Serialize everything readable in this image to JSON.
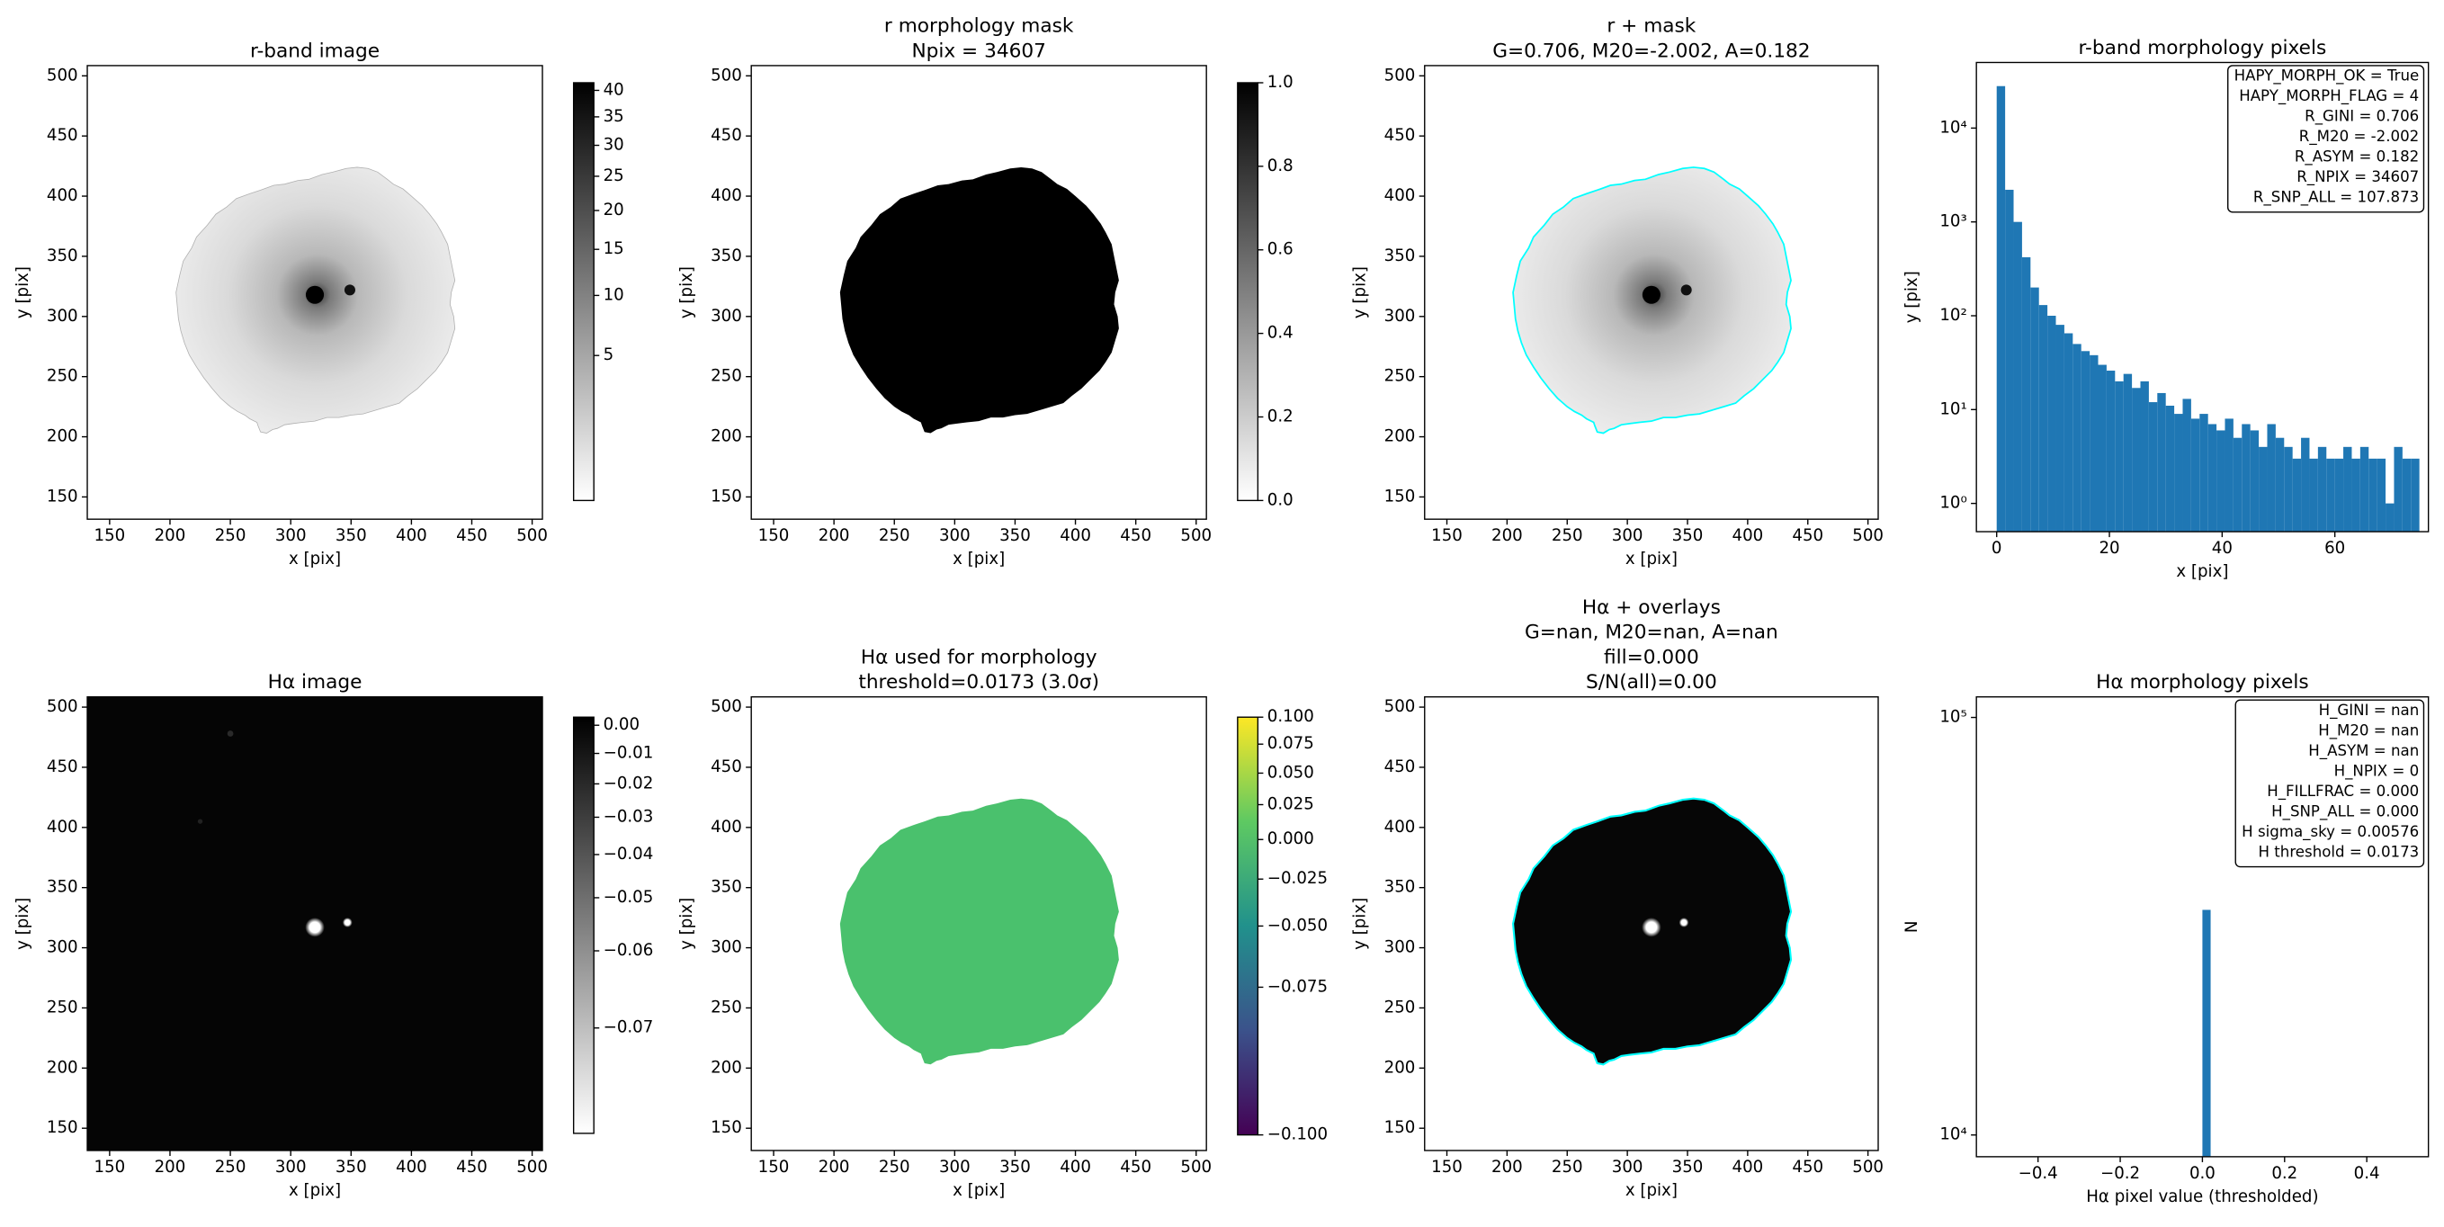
{
  "chart_data": [
    {
      "type": "image",
      "title": [
        "r-band image"
      ],
      "xlabel": "x [pix]",
      "ylabel": "y [pix]",
      "xlim": [
        131.5,
        508.5
      ],
      "ylim": [
        131.5,
        508.5
      ],
      "xticks": [
        150,
        200,
        250,
        300,
        350,
        400,
        450,
        500
      ],
      "yticks": [
        150,
        200,
        250,
        300,
        350,
        400,
        450,
        500
      ],
      "colorbar": {
        "cmap": "gray_r",
        "stretch": "sqrt",
        "lim": [
          0,
          41.5
        ],
        "ticks": [
          5,
          10,
          15,
          20,
          25,
          30,
          35,
          40
        ]
      }
    },
    {
      "type": "image",
      "title": [
        "r morphology mask",
        "Npix = 34607"
      ],
      "xlabel": "x [pix]",
      "ylabel": "y [pix]",
      "xlim": [
        131.5,
        508.5
      ],
      "ylim": [
        131.5,
        508.5
      ],
      "xticks": [
        150,
        200,
        250,
        300,
        350,
        400,
        450,
        500
      ],
      "yticks": [
        150,
        200,
        250,
        300,
        350,
        400,
        450,
        500
      ],
      "colorbar": {
        "cmap": "gray_r",
        "stretch": "linear",
        "lim": [
          0,
          1
        ],
        "ticks": [
          {
            "value": 0,
            "label": "0.0"
          },
          0.2,
          0.4,
          0.6,
          0.8,
          {
            "value": 1,
            "label": "1.0"
          }
        ]
      }
    },
    {
      "type": "image",
      "title": [
        "r + mask",
        "G=0.706, M20=-2.002, A=0.182"
      ],
      "xlabel": "x [pix]",
      "ylabel": "y [pix]",
      "xlim": [
        131.5,
        508.5
      ],
      "ylim": [
        131.5,
        508.5
      ],
      "xticks": [
        150,
        200,
        250,
        300,
        350,
        400,
        450,
        500
      ],
      "yticks": [
        150,
        200,
        250,
        300,
        350,
        400,
        450,
        500
      ]
    },
    {
      "type": "histogram",
      "title": [
        "r-band morphology pixels"
      ],
      "xlabel": "x [pix]",
      "ylabel": "y [pix]",
      "xlim": [
        -3.6,
        76.6
      ],
      "ylim": [
        0.5,
        50000
      ],
      "ylog": true,
      "color": "#1f77b4",
      "xticks": [
        0,
        20,
        40,
        60
      ],
      "yticks": [
        {
          "value": 1,
          "label": "10⁰"
        },
        {
          "value": 10,
          "label": "10¹"
        },
        {
          "value": 100,
          "label": "10²"
        },
        {
          "value": 1000,
          "label": "10³"
        },
        {
          "value": 10000,
          "label": "10⁴"
        }
      ],
      "bins": [
        0,
        1.5,
        3,
        4.5,
        6,
        7.5,
        9,
        10.5,
        12,
        13.5,
        15,
        16.5,
        18,
        19.5,
        21,
        22.5,
        24,
        25.5,
        27,
        28.5,
        30,
        31.5,
        33,
        34.5,
        36,
        37.5,
        39,
        40.5,
        42,
        43.5,
        45,
        46.5,
        48,
        49.5,
        51,
        52.5,
        54,
        55.5,
        57,
        58.5,
        60,
        61.5,
        63,
        64.5,
        66,
        67.5,
        69,
        70.5,
        72,
        73.5,
        75
      ],
      "values": [
        28000,
        2200,
        1000,
        420,
        200,
        130,
        100,
        80,
        65,
        50,
        42,
        38,
        30,
        26,
        20,
        24,
        17,
        20,
        12,
        15,
        11,
        9,
        13,
        8,
        9,
        7,
        6,
        8,
        5,
        7,
        6,
        4,
        7,
        5,
        4,
        3,
        5,
        3,
        4,
        3,
        3,
        4,
        3,
        4,
        3,
        3,
        1,
        4,
        3,
        3
      ],
      "annotation": [
        "HAPY_MORPH_OK = True",
        "HAPY_MORPH_FLAG = 4",
        "R_GINI = 0.706",
        "R_M20 = -2.002",
        "R_ASYM = 0.182",
        "R_NPIX = 34607",
        "R_SNP_ALL = 107.873"
      ]
    },
    {
      "type": "image",
      "title": [
        "Hα image"
      ],
      "xlabel": "x [pix]",
      "ylabel": "y [pix]",
      "xlim": [
        131.5,
        508.5
      ],
      "ylim": [
        131.5,
        508.5
      ],
      "xticks": [
        150,
        200,
        250,
        300,
        350,
        400,
        450,
        500
      ],
      "yticks": [
        150,
        200,
        250,
        300,
        350,
        400,
        450,
        500
      ],
      "colorbar": {
        "cmap": "gray_r",
        "stretch": "sqrt",
        "lim": [
          -0.075,
          0.003
        ],
        "ticks": [
          {
            "value": 0,
            "label": "0.00"
          },
          {
            "value": -0.01,
            "label": "−0.01"
          },
          {
            "value": -0.02,
            "label": "−0.02"
          },
          {
            "value": -0.03,
            "label": "−0.03"
          },
          {
            "value": -0.04,
            "label": "−0.04"
          },
          {
            "value": -0.05,
            "label": "−0.05"
          },
          {
            "value": -0.06,
            "label": "−0.06"
          },
          {
            "value": -0.07,
            "label": "−0.07"
          }
        ]
      }
    },
    {
      "type": "image",
      "title": [
        "Hα used for morphology",
        "threshold=0.0173 (3.0σ)"
      ],
      "xlabel": "x [pix]",
      "ylabel": "y [pix]",
      "xlim": [
        131.5,
        508.5
      ],
      "ylim": [
        131.5,
        508.5
      ],
      "xticks": [
        150,
        200,
        250,
        300,
        350,
        400,
        450,
        500
      ],
      "yticks": [
        150,
        200,
        250,
        300,
        350,
        400,
        450,
        500
      ],
      "colorbar": {
        "cmap": "viridis",
        "stretch": "sqrt",
        "lim": [
          -0.1,
          0.1
        ],
        "ticks": [
          {
            "value": 0.1,
            "label": "0.100"
          },
          0.075,
          {
            "value": 0.05,
            "label": "0.050"
          },
          0.025,
          {
            "value": 0,
            "label": "0.000"
          },
          {
            "value": -0.025,
            "label": "−0.025"
          },
          {
            "value": -0.05,
            "label": "−0.050"
          },
          {
            "value": -0.075,
            "label": "−0.075"
          },
          {
            "value": -0.1,
            "label": "−0.100"
          }
        ]
      }
    },
    {
      "type": "image",
      "title": [
        "Hα + overlays",
        "G=nan, M20=nan, A=nan",
        "fill=0.000",
        "S/N(all)=0.00"
      ],
      "xlabel": "x [pix]",
      "ylabel": "y [pix]",
      "xlim": [
        131.5,
        508.5
      ],
      "ylim": [
        131.5,
        508.5
      ],
      "xticks": [
        150,
        200,
        250,
        300,
        350,
        400,
        450,
        500
      ],
      "yticks": [
        150,
        200,
        250,
        300,
        350,
        400,
        450,
        500
      ]
    },
    {
      "type": "histogram",
      "title": [
        "Hα morphology pixels"
      ],
      "xlabel": "Hα pixel value (thresholded)",
      "ylabel": "N",
      "xlim": [
        -0.55,
        0.55
      ],
      "ylim": [
        8870,
        112000
      ],
      "ylog": true,
      "color": "#1f77b4",
      "xticks": [
        {
          "value": -0.4,
          "label": "−0.4"
        },
        {
          "value": -0.2,
          "label": "−0.2"
        },
        {
          "value": 0,
          "label": "0.0"
        },
        0.2,
        0.4
      ],
      "yticks": [
        {
          "value": 10000,
          "label": "10⁴"
        },
        {
          "value": 100000,
          "label": "10⁵"
        }
      ],
      "bins": [
        0,
        0.02
      ],
      "values": [
        34607
      ],
      "annotation": [
        "H_GINI = nan",
        "H_M20 = nan",
        "H_ASYM = nan",
        "H_NPIX = 0",
        "H_FILLFRAC = 0.000",
        "H_SNP_ALL = 0.000",
        "H sigma_sky = 0.00576",
        "H threshold = 0.0173"
      ]
    }
  ]
}
